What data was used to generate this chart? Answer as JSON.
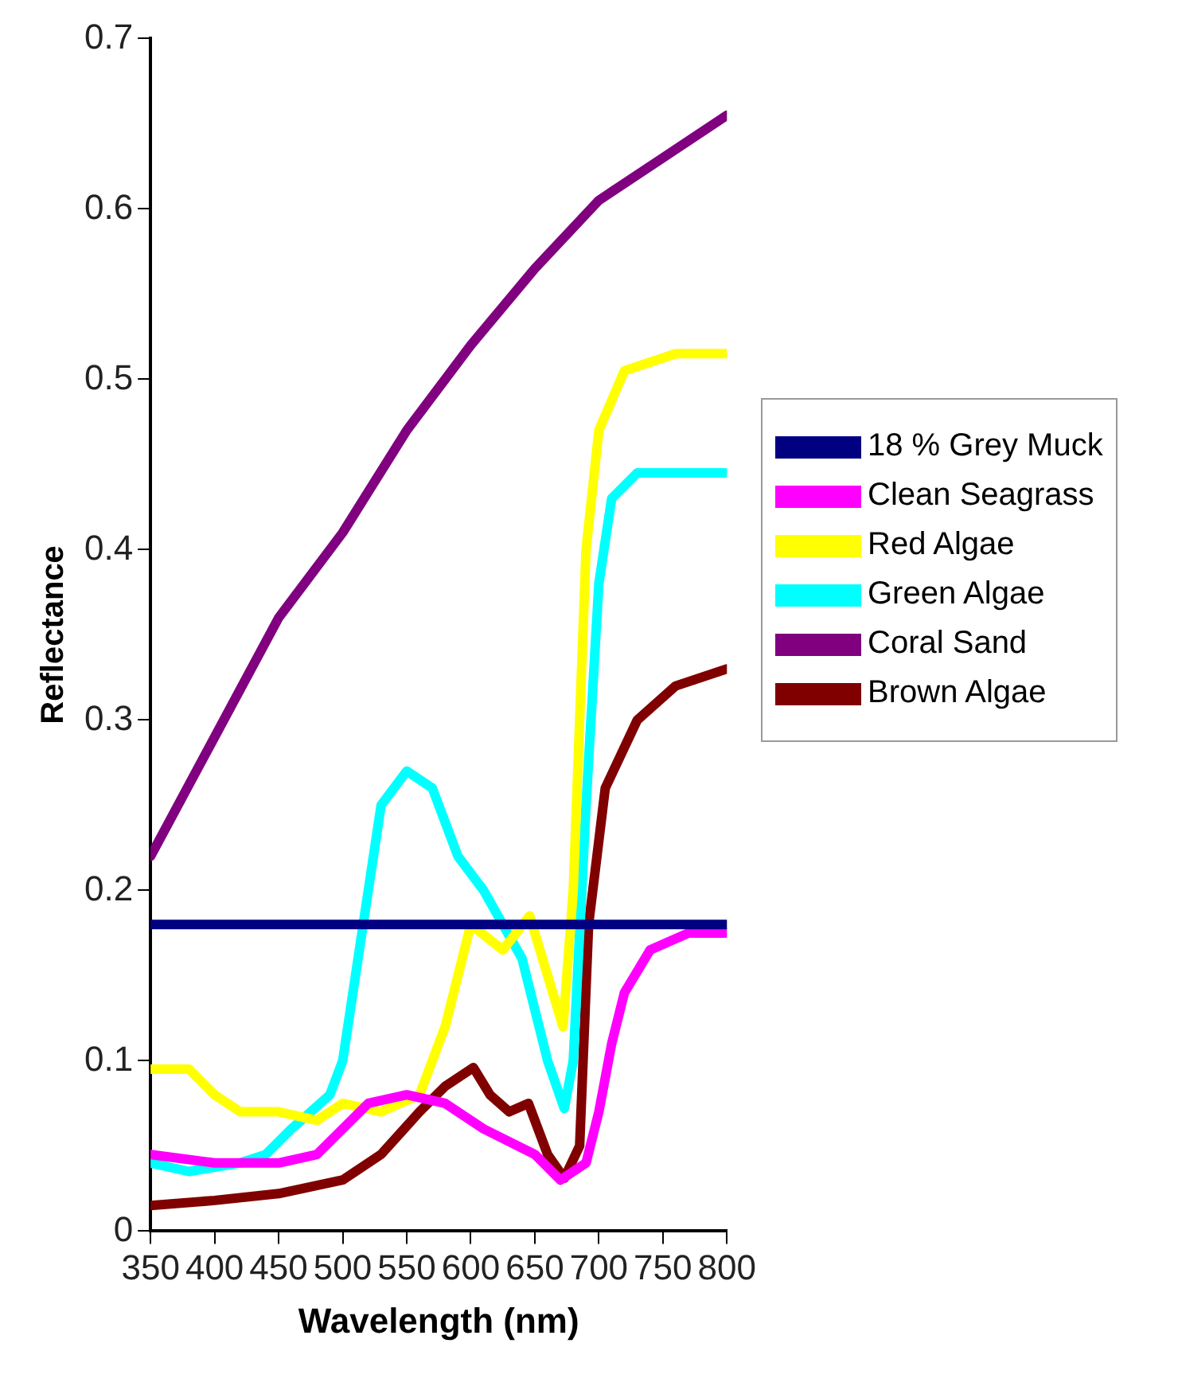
{
  "chart_data": {
    "type": "line",
    "xlabel": "Wavelength (nm)",
    "ylabel": "Reflectance",
    "xlim": [
      350,
      800
    ],
    "xticks": [
      350,
      400,
      450,
      500,
      550,
      600,
      650,
      700,
      750,
      800
    ],
    "ylim": [
      0,
      0.7
    ],
    "yticks": [
      0,
      0.1,
      0.2,
      0.3,
      0.4,
      0.5,
      0.6,
      0.7
    ],
    "legend": "right",
    "grid": false,
    "marker": "none",
    "line_style": "solid",
    "series": [
      {
        "name": "18 % Grey Muck",
        "color": "#000080",
        "x": [
          350,
          800
        ],
        "values": [
          0.18,
          0.18
        ]
      },
      {
        "name": "Clean Seagrass",
        "color": "#ff00ff",
        "x": [
          350,
          400,
          450,
          480,
          500,
          520,
          550,
          580,
          610,
          650,
          670,
          690,
          700,
          710,
          720,
          740,
          770,
          800
        ],
        "values": [
          0.045,
          0.04,
          0.04,
          0.045,
          0.06,
          0.075,
          0.08,
          0.075,
          0.06,
          0.045,
          0.03,
          0.04,
          0.07,
          0.11,
          0.14,
          0.165,
          0.175,
          0.175
        ]
      },
      {
        "name": "Red Algae",
        "color": "#ffff00",
        "x": [
          350,
          380,
          400,
          420,
          450,
          480,
          500,
          530,
          560,
          580,
          600,
          625,
          646,
          660,
          672,
          680,
          690,
          700,
          720,
          760,
          800
        ],
        "values": [
          0.095,
          0.095,
          0.08,
          0.07,
          0.07,
          0.065,
          0.075,
          0.07,
          0.08,
          0.12,
          0.18,
          0.165,
          0.185,
          0.15,
          0.12,
          0.2,
          0.4,
          0.47,
          0.505,
          0.515,
          0.515
        ]
      },
      {
        "name": "Green Algae",
        "color": "#00ffff",
        "x": [
          350,
          380,
          420,
          440,
          460,
          490,
          500,
          516,
          530,
          550,
          570,
          590,
          610,
          640,
          660,
          673,
          680,
          690,
          700,
          710,
          730,
          800
        ],
        "values": [
          0.04,
          0.035,
          0.04,
          0.045,
          0.06,
          0.08,
          0.1,
          0.18,
          0.25,
          0.27,
          0.26,
          0.22,
          0.2,
          0.16,
          0.1,
          0.072,
          0.1,
          0.25,
          0.38,
          0.43,
          0.445,
          0.445
        ]
      },
      {
        "name": "Coral Sand",
        "color": "#800080",
        "x": [
          350,
          400,
          450,
          500,
          550,
          600,
          650,
          700,
          750,
          800
        ],
        "values": [
          0.22,
          0.29,
          0.36,
          0.41,
          0.47,
          0.52,
          0.565,
          0.605,
          0.63,
          0.655
        ]
      },
      {
        "name": "Brown Algae",
        "color": "#800000",
        "x": [
          350,
          400,
          450,
          500,
          530,
          560,
          580,
          602,
          615,
          630,
          645,
          660,
          673,
          685,
          692,
          705,
          730,
          760,
          800
        ],
        "values": [
          0.015,
          0.018,
          0.022,
          0.03,
          0.045,
          0.07,
          0.085,
          0.096,
          0.08,
          0.07,
          0.075,
          0.045,
          0.031,
          0.05,
          0.18,
          0.26,
          0.3,
          0.32,
          0.33
        ]
      }
    ]
  }
}
